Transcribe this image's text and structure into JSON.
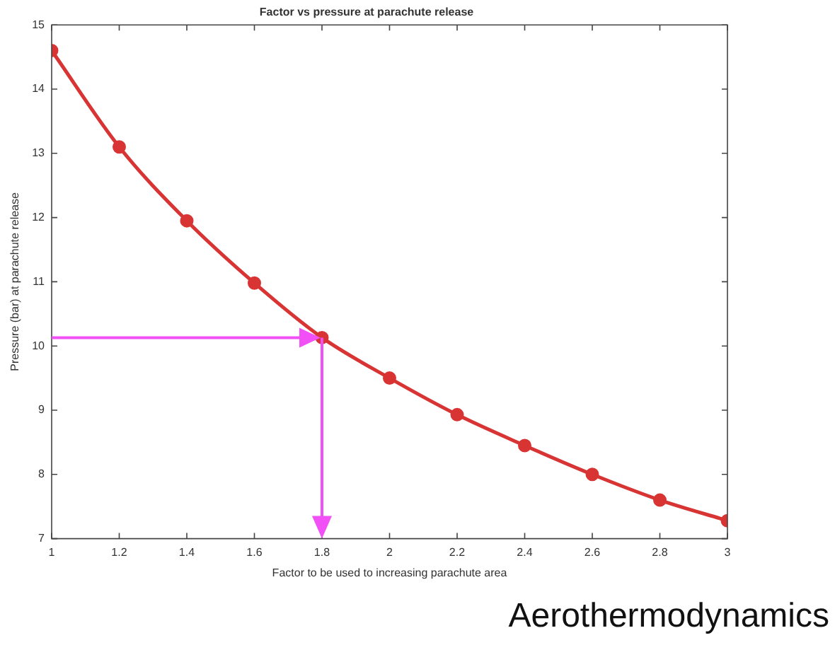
{
  "chart_data": {
    "type": "line",
    "title": "Factor vs pressure at parachute release",
    "xlabel": "Factor to be used to increasing parachute area",
    "ylabel": "Pressure (bar) at parachute release",
    "x": [
      1,
      1.2,
      1.4,
      1.6,
      1.8,
      2,
      2.2,
      2.4,
      2.6,
      2.8,
      3
    ],
    "series": [
      {
        "color": "#d83434",
        "values": [
          14.6,
          13.1,
          11.95,
          10.98,
          10.13,
          9.5,
          8.93,
          8.45,
          8.0,
          7.6,
          7.28
        ]
      }
    ],
    "xlim": [
      1,
      3
    ],
    "xticks": [
      1,
      1.2,
      1.4,
      1.6,
      1.8,
      2,
      2.2,
      2.4,
      2.6,
      2.8,
      3
    ],
    "ylim": [
      7,
      15
    ],
    "yticks": [
      7,
      8,
      9,
      10,
      11,
      12,
      13,
      14,
      15
    ],
    "grid": false,
    "legend": false,
    "marker": "circle",
    "line_style": "solid",
    "annotations": [
      "Aerothermodynamics"
    ]
  }
}
